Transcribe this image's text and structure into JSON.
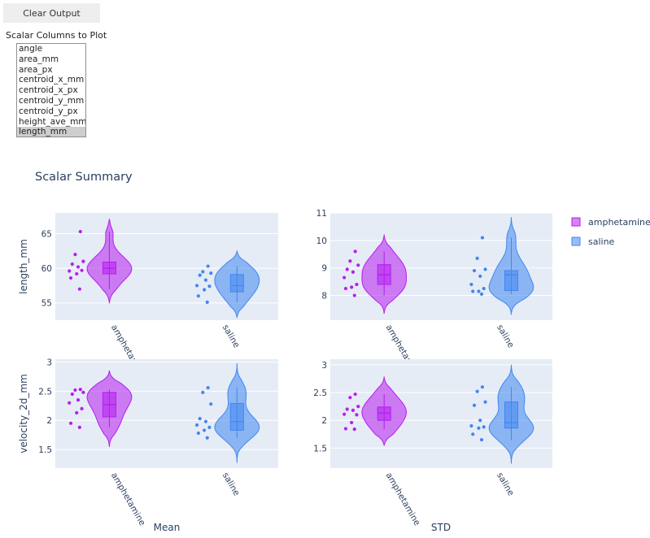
{
  "controls": {
    "clear_label": "Clear Output",
    "select_label": "Scalar Columns to Plot",
    "columns": [
      "angle",
      "area_mm",
      "area_px",
      "centroid_x_mm",
      "centroid_x_px",
      "centroid_y_mm",
      "centroid_y_px",
      "height_ave_mm",
      "length_mm"
    ],
    "selected": "length_mm"
  },
  "colors": {
    "amphetamine": "#b61eef",
    "saline": "#4287f0",
    "plot_bg": "#e5ecf6"
  },
  "chart_data": {
    "type": "violin",
    "title": "Scalar Summary",
    "legend": {
      "placement": "top-right",
      "entries": [
        "amphetamine",
        "saline"
      ]
    },
    "categories": [
      "amphetamine",
      "saline"
    ],
    "column_titles": [
      "Mean",
      "STD"
    ],
    "row_titles": [
      "length_mm",
      "velocity_2d_mm"
    ],
    "panels": [
      {
        "statistic": "Mean",
        "variable": "length_mm",
        "ylim": [
          52.5,
          68
        ],
        "yticks": [
          55,
          60,
          65
        ],
        "series": [
          {
            "name": "amphetamine",
            "points": [
              65.3,
              62,
              61,
              60.6,
              60.2,
              59.6,
              59.7,
              59.2,
              58.6,
              57.0
            ],
            "box": {
              "q1": 59.2,
              "median": 60.0,
              "q3": 60.9
            },
            "kde_range": [
              55.0,
              67.1
            ]
          },
          {
            "name": "saline",
            "points": [
              60.3,
              59.5,
              59.3,
              59.0,
              58.3,
              57.5,
              57.4,
              56.9,
              56.0,
              55.1
            ],
            "box": {
              "q1": 56.6,
              "median": 57.5,
              "q3": 59.1
            },
            "kde_range": [
              52.9,
              62.5
            ]
          }
        ]
      },
      {
        "statistic": "STD",
        "variable": "length_mm",
        "ylim": [
          7.1,
          11.0
        ],
        "yticks": [
          8,
          9,
          10,
          11
        ],
        "series": [
          {
            "name": "amphetamine",
            "points": [
              9.6,
              9.25,
              9.1,
              8.95,
              8.85,
              8.65,
              8.4,
              8.3,
              8.25,
              8.0
            ],
            "box": {
              "q1": 8.4,
              "median": 8.75,
              "q3": 9.12
            },
            "kde_range": [
              7.35,
              10.2
            ]
          },
          {
            "name": "saline",
            "points": [
              10.1,
              9.35,
              8.95,
              8.9,
              8.7,
              8.4,
              8.25,
              8.15,
              8.15,
              8.05
            ],
            "box": {
              "q1": 8.18,
              "median": 8.75,
              "q3": 8.9
            },
            "kde_range": [
              7.3,
              10.85
            ]
          }
        ]
      },
      {
        "statistic": "Mean",
        "variable": "velocity_2d_mm",
        "ylim": [
          1.18,
          3.05
        ],
        "yticks": [
          1.5,
          2,
          2.5,
          3
        ],
        "series": [
          {
            "name": "amphetamine",
            "points": [
              2.53,
              2.52,
              2.48,
              2.45,
              2.35,
              2.3,
              2.2,
              2.13,
              1.95,
              1.88
            ],
            "box": {
              "q1": 2.06,
              "median": 2.27,
              "q3": 2.48
            },
            "kde_range": [
              1.55,
              2.85
            ]
          },
          {
            "name": "saline",
            "points": [
              2.56,
              2.48,
              2.28,
              2.03,
              1.98,
              1.92,
              1.88,
              1.83,
              1.78,
              1.7
            ],
            "box": {
              "q1": 1.83,
              "median": 1.98,
              "q3": 2.29
            },
            "kde_range": [
              1.27,
              2.98
            ]
          }
        ]
      },
      {
        "statistic": "STD",
        "variable": "velocity_2d_mm",
        "ylim": [
          1.14,
          3.1
        ],
        "yticks": [
          1.5,
          2,
          2.5,
          3
        ],
        "series": [
          {
            "name": "amphetamine",
            "points": [
              2.47,
              2.41,
              2.25,
              2.2,
              2.18,
              2.11,
              2.1,
              1.96,
              1.85,
              1.84
            ],
            "box": {
              "q1": 2.0,
              "median": 2.13,
              "q3": 2.24
            },
            "kde_range": [
              1.55,
              2.78
            ]
          },
          {
            "name": "saline",
            "points": [
              2.6,
              2.52,
              2.33,
              2.27,
              2.0,
              1.9,
              1.88,
              1.86,
              1.75,
              1.65
            ],
            "box": {
              "q1": 1.86,
              "median": 1.96,
              "q3": 2.33
            },
            "kde_range": [
              1.22,
              3.0
            ]
          }
        ]
      }
    ]
  }
}
